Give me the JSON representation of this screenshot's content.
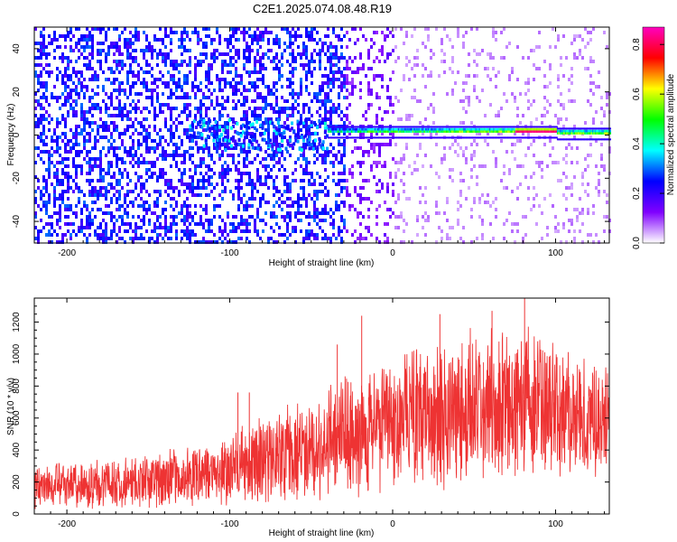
{
  "title": "C2E1.2025.074.08.48.R19",
  "chart_data": [
    {
      "type": "heatmap",
      "xlabel": "Height of straight line (km)",
      "ylabel": "Frequency (Hz)",
      "xlim": [
        -220,
        133
      ],
      "ylim": [
        -50,
        50
      ],
      "xticks": [
        -200,
        -100,
        0,
        100
      ],
      "yticks": [
        -40,
        -20,
        0,
        20,
        40
      ],
      "colorbar": {
        "label": "Normalized spectral amplitude",
        "range": [
          0,
          0.87
        ],
        "ticks": [
          0.0,
          0.2,
          0.4,
          0.6,
          0.8
        ],
        "colors": [
          "#ffffff",
          "#8000ff",
          "#0000ff",
          "#00ffff",
          "#00ff00",
          "#ffff00",
          "#ff0000",
          "#ff00c0"
        ]
      },
      "ridge": {
        "frequency_hz": 1,
        "start_km": -40,
        "peak_km": [
          75,
          100
        ],
        "peak_amplitude": 0.85
      }
    },
    {
      "type": "line",
      "xlabel": "Height of straight line (km)",
      "ylabel": "SNR (10 * v/v)",
      "xlim": [
        -220,
        133
      ],
      "ylim": [
        0,
        1350
      ],
      "xticks": [
        -200,
        -100,
        0,
        100
      ],
      "yticks": [
        0,
        200,
        400,
        600,
        800,
        1000,
        1200
      ],
      "color": "#ee3333",
      "envelope": [
        {
          "x": -220,
          "lo": 40,
          "hi": 310
        },
        {
          "x": -200,
          "lo": 40,
          "hi": 330
        },
        {
          "x": -160,
          "lo": 40,
          "hi": 360
        },
        {
          "x": -120,
          "lo": 50,
          "hi": 420
        },
        {
          "x": -100,
          "lo": 60,
          "hi": 500
        },
        {
          "x": -80,
          "lo": 70,
          "hi": 600
        },
        {
          "x": -60,
          "lo": 80,
          "hi": 680
        },
        {
          "x": -40,
          "lo": 100,
          "hi": 820
        },
        {
          "x": -20,
          "lo": 130,
          "hi": 880
        },
        {
          "x": 0,
          "lo": 150,
          "hi": 980
        },
        {
          "x": 20,
          "lo": 150,
          "hi": 1050
        },
        {
          "x": 40,
          "lo": 160,
          "hi": 1120
        },
        {
          "x": 60,
          "lo": 200,
          "hi": 1130
        },
        {
          "x": 80,
          "lo": 250,
          "hi": 1160
        },
        {
          "x": 100,
          "lo": 260,
          "hi": 1060
        },
        {
          "x": 120,
          "lo": 230,
          "hi": 960
        },
        {
          "x": 133,
          "lo": 240,
          "hi": 920
        }
      ],
      "spikes": [
        {
          "x": -19,
          "y": 1240
        },
        {
          "x": 29,
          "y": 1250
        },
        {
          "x": 81,
          "y": 1350
        },
        {
          "x": 61,
          "y": 1270
        },
        {
          "x": -34,
          "y": 1060
        },
        {
          "x": -95,
          "y": 760
        },
        {
          "x": -88,
          "y": 760
        }
      ]
    }
  ]
}
